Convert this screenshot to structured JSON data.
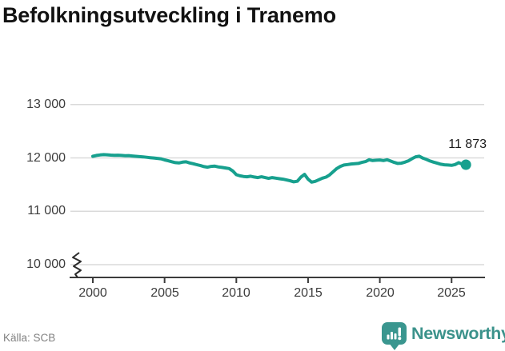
{
  "title": "Befolkningsutveckling i Tranemo",
  "source": "Källa: SCB",
  "branding": {
    "name": "Newsworthy",
    "badge_color": "#3a968f",
    "text_color": "#3b928b"
  },
  "annotation": {
    "last_value_label": "11 873"
  },
  "colors": {
    "line": "#17a08e",
    "grid": "#dadada",
    "axis": "#3c3c3c",
    "title": "#121212",
    "tick_text": "#3d3d3d",
    "source_text": "#828282"
  },
  "chart_data": {
    "type": "line",
    "title": "Befolkningsutveckling i Tranemo",
    "xlabel": "",
    "ylabel": "",
    "grid": "horizontal",
    "legend": "none",
    "y_axis_break": true,
    "ylim_display": [
      10000,
      13400
    ],
    "xlim": [
      1999.5,
      2027.3
    ],
    "y_ticks": {
      "values": [
        13000,
        12000,
        11000,
        10000
      ],
      "labels": [
        "13 000",
        "12 000",
        "11 000",
        "10 000"
      ]
    },
    "x_ticks": {
      "values": [
        2000,
        2005,
        2010,
        2015,
        2020,
        2025
      ],
      "labels": [
        "2000",
        "2005",
        "2010",
        "2015",
        "2020",
        "2025"
      ]
    },
    "last_point": {
      "x": 2026.0,
      "value": 11873,
      "label": "11 873"
    },
    "series": [
      {
        "name": "Befolkning",
        "points": [
          [
            2000.0,
            12030
          ],
          [
            2000.25,
            12046
          ],
          [
            2000.5,
            12056
          ],
          [
            2000.75,
            12062
          ],
          [
            2001.0,
            12058
          ],
          [
            2001.25,
            12052
          ],
          [
            2001.5,
            12049
          ],
          [
            2001.75,
            12051
          ],
          [
            2002.0,
            12046
          ],
          [
            2002.25,
            12040
          ],
          [
            2002.5,
            12043
          ],
          [
            2002.75,
            12036
          ],
          [
            2003.0,
            12030
          ],
          [
            2003.25,
            12024
          ],
          [
            2003.5,
            12019
          ],
          [
            2003.75,
            12012
          ],
          [
            2004.0,
            12005
          ],
          [
            2004.25,
            11998
          ],
          [
            2004.5,
            11991
          ],
          [
            2004.75,
            11983
          ],
          [
            2005.0,
            11962
          ],
          [
            2005.25,
            11946
          ],
          [
            2005.5,
            11928
          ],
          [
            2005.75,
            11912
          ],
          [
            2006.0,
            11906
          ],
          [
            2006.25,
            11921
          ],
          [
            2006.5,
            11926
          ],
          [
            2006.75,
            11906
          ],
          [
            2007.0,
            11890
          ],
          [
            2007.25,
            11872
          ],
          [
            2007.5,
            11856
          ],
          [
            2007.75,
            11836
          ],
          [
            2008.0,
            11826
          ],
          [
            2008.25,
            11841
          ],
          [
            2008.5,
            11846
          ],
          [
            2008.75,
            11831
          ],
          [
            2009.0,
            11821
          ],
          [
            2009.25,
            11811
          ],
          [
            2009.5,
            11801
          ],
          [
            2009.75,
            11756
          ],
          [
            2010.0,
            11686
          ],
          [
            2010.25,
            11664
          ],
          [
            2010.5,
            11652
          ],
          [
            2010.75,
            11647
          ],
          [
            2011.0,
            11657
          ],
          [
            2011.25,
            11642
          ],
          [
            2011.5,
            11632
          ],
          [
            2011.75,
            11646
          ],
          [
            2012.0,
            11632
          ],
          [
            2012.25,
            11617
          ],
          [
            2012.5,
            11631
          ],
          [
            2012.75,
            11621
          ],
          [
            2013.0,
            11611
          ],
          [
            2013.25,
            11601
          ],
          [
            2013.5,
            11586
          ],
          [
            2013.75,
            11571
          ],
          [
            2014.0,
            11552
          ],
          [
            2014.25,
            11562
          ],
          [
            2014.5,
            11641
          ],
          [
            2014.75,
            11691
          ],
          [
            2015.0,
            11601
          ],
          [
            2015.25,
            11546
          ],
          [
            2015.5,
            11561
          ],
          [
            2015.75,
            11591
          ],
          [
            2016.0,
            11621
          ],
          [
            2016.25,
            11641
          ],
          [
            2016.5,
            11681
          ],
          [
            2016.75,
            11741
          ],
          [
            2017.0,
            11801
          ],
          [
            2017.25,
            11841
          ],
          [
            2017.5,
            11866
          ],
          [
            2017.75,
            11876
          ],
          [
            2018.0,
            11886
          ],
          [
            2018.25,
            11891
          ],
          [
            2018.5,
            11896
          ],
          [
            2018.75,
            11916
          ],
          [
            2019.0,
            11931
          ],
          [
            2019.25,
            11966
          ],
          [
            2019.5,
            11951
          ],
          [
            2019.75,
            11956
          ],
          [
            2020.0,
            11961
          ],
          [
            2020.25,
            11951
          ],
          [
            2020.5,
            11966
          ],
          [
            2020.75,
            11941
          ],
          [
            2021.0,
            11916
          ],
          [
            2021.25,
            11896
          ],
          [
            2021.5,
            11901
          ],
          [
            2021.75,
            11921
          ],
          [
            2022.0,
            11946
          ],
          [
            2022.25,
            11986
          ],
          [
            2022.5,
            12021
          ],
          [
            2022.75,
            12031
          ],
          [
            2023.0,
            11996
          ],
          [
            2023.25,
            11971
          ],
          [
            2023.5,
            11941
          ],
          [
            2023.75,
            11921
          ],
          [
            2024.0,
            11901
          ],
          [
            2024.25,
            11881
          ],
          [
            2024.5,
            11871
          ],
          [
            2024.75,
            11866
          ],
          [
            2025.0,
            11861
          ],
          [
            2025.25,
            11876
          ],
          [
            2025.5,
            11911
          ],
          [
            2025.75,
            11881
          ],
          [
            2026.0,
            11873
          ]
        ]
      }
    ]
  }
}
